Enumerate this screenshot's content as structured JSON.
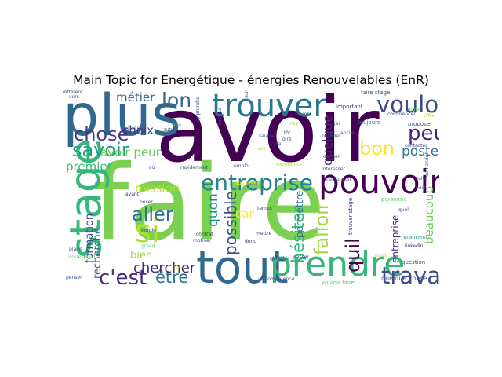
{
  "chart_data": {
    "type": "wordcloud",
    "title": "Main Topic for Energétique - énergies Renouvelables (EnR)",
    "colors": [
      "#440154",
      "#3b528b",
      "#21918c",
      "#5ec962",
      "#fde725"
    ],
    "words": [
      {
        "text": "faire",
        "weight": 1.0,
        "color": "#7ad151"
      },
      {
        "text": "avoir",
        "weight": 0.86,
        "color": "#440154"
      },
      {
        "text": "plus",
        "weight": 0.55,
        "color": "#31688e"
      },
      {
        "text": "tout",
        "weight": 0.44,
        "color": "#31688e"
      },
      {
        "text": "stage",
        "weight": 0.42,
        "color": "#35b779"
      },
      {
        "text": "trouver",
        "weight": 0.3,
        "color": "#2a788e"
      },
      {
        "text": "pouvoir",
        "weight": 0.32,
        "color": "#440154"
      },
      {
        "text": "prendre",
        "weight": 0.33,
        "color": "#35b779"
      },
      {
        "text": "si",
        "weight": 0.3,
        "color": "#b5de2b"
      },
      {
        "text": "entreprise",
        "weight": 0.21,
        "color": "#26828e"
      },
      {
        "text": "vouloir",
        "weight": 0.22,
        "color": "#3e4989"
      },
      {
        "text": "peur",
        "weight": 0.2,
        "color": "#482878"
      },
      {
        "text": "travail",
        "weight": 0.22,
        "color": "#3e4989"
      },
      {
        "text": "savoir",
        "weight": 0.18,
        "color": "#1f9e89"
      },
      {
        "text": "chose",
        "weight": 0.18,
        "color": "#443983"
      },
      {
        "text": "lon",
        "weight": 0.19,
        "color": "#31688e"
      },
      {
        "text": "bon",
        "weight": 0.18,
        "color": "#fde725"
      },
      {
        "text": "aller",
        "weight": 0.18,
        "color": "#2c728e"
      },
      {
        "text": "c'est",
        "weight": 0.2,
        "color": "#472d7b"
      },
      {
        "text": "être",
        "weight": 0.16,
        "color": "#2a788e"
      },
      {
        "text": "chercher",
        "weight": 0.14,
        "color": "#482878"
      },
      {
        "text": "falloir",
        "weight": 0.18,
        "color": "#a0da39"
      },
      {
        "text": "hésiter",
        "weight": 0.16,
        "color": "#35b779"
      },
      {
        "text": "possible",
        "weight": 0.15,
        "color": "#3b528b"
      },
      {
        "text": "quil",
        "weight": 0.18,
        "color": "#440154"
      },
      {
        "text": "quon",
        "weight": 0.13,
        "color": "#21918c"
      },
      {
        "text": "quelque",
        "weight": 0.12,
        "color": "#472d7b"
      },
      {
        "text": "poste",
        "weight": 0.13,
        "color": "#2a788e"
      },
      {
        "text": "beaucoup",
        "weight": 0.11,
        "color": "#6ece58"
      },
      {
        "text": "essayer",
        "weight": 0.12,
        "color": "#3b528b"
      },
      {
        "text": "mission",
        "weight": 0.11,
        "color": "#b5de2b"
      },
      {
        "text": "car",
        "weight": 0.11,
        "color": "#fde725"
      },
      {
        "text": "premier",
        "weight": 0.11,
        "color": "#35b779"
      },
      {
        "text": "métier",
        "weight": 0.11,
        "color": "#31688e"
      },
      {
        "text": "choix",
        "weight": 0.11,
        "color": "#443983"
      },
      {
        "text": "avoir peur",
        "weight": 0.11,
        "color": "#6ece58"
      },
      {
        "text": "formation",
        "weight": 0.1,
        "color": "#3e4989"
      },
      {
        "text": "recherche",
        "weight": 0.1,
        "color": "#31688e"
      },
      {
        "text": "bien",
        "weight": 0.1,
        "color": "#a0da39"
      },
      {
        "text": "permettre",
        "weight": 0.09,
        "color": "#2c728e"
      },
      {
        "text": "entreprise",
        "weight": 0.09,
        "color": "#482878"
      },
      {
        "text": "quelque chose",
        "weight": 0.06,
        "color": "#3b528b"
      },
      {
        "text": "vouloir faire",
        "weight": 0.05,
        "color": "#5ec962"
      },
      {
        "text": "faire stage",
        "weight": 0.05,
        "color": "#3b528b"
      },
      {
        "text": "trouver stage",
        "weight": 0.05,
        "color": "#472d7b"
      },
      {
        "text": "important",
        "weight": 0.05,
        "color": "#443983"
      },
      {
        "text": "toujours",
        "weight": 0.05,
        "color": "#2a788e"
      },
      {
        "text": "proposer",
        "weight": 0.05,
        "color": "#3b528b"
      },
      {
        "text": "contacter",
        "weight": 0.04,
        "color": "#443983"
      },
      {
        "text": "question",
        "weight": 0.05,
        "color": "#3b528b"
      },
      {
        "text": "linkedin",
        "weight": 0.04,
        "color": "#482878"
      },
      {
        "text": "vraiment",
        "weight": 0.05,
        "color": "#21918c"
      },
      {
        "text": "personne",
        "weight": 0.05,
        "color": "#5ec962"
      },
      {
        "text": "expérience",
        "weight": 0.04,
        "color": "#b5de2b"
      },
      {
        "text": "emploi",
        "weight": 0.04,
        "color": "#3b528b"
      },
      {
        "text": "temps",
        "weight": 0.04,
        "color": "#472d7b"
      },
      {
        "text": "mettre",
        "weight": 0.04,
        "color": "#443983"
      },
      {
        "text": "contrat",
        "weight": 0.04,
        "color": "#472d7b"
      },
      {
        "text": "motiver",
        "weight": 0.04,
        "color": "#3b528b"
      },
      {
        "text": "grand",
        "weight": 0.04,
        "color": "#5ec962"
      },
      {
        "text": "penser",
        "weight": 0.04,
        "color": "#3b528b"
      },
      {
        "text": "donc",
        "weight": 0.04,
        "color": "#472d7b"
      },
      {
        "text": "poser",
        "weight": 0.04,
        "color": "#3e4989"
      },
      {
        "text": "avant",
        "weight": 0.04,
        "color": "#472d7b"
      },
      {
        "text": "celer",
        "weight": 0.04,
        "color": "#3b528b"
      },
      {
        "text": "afin",
        "weight": 0.04,
        "color": "#5ec962"
      },
      {
        "text": "cela",
        "weight": 0.04,
        "color": "#3b528b"
      },
      {
        "text": "dire",
        "weight": 0.04,
        "color": "#3b528b"
      },
      {
        "text": "très",
        "weight": 0.04,
        "color": "#b5de2b"
      },
      {
        "text": "tôt",
        "weight": 0.04,
        "color": "#3b528b"
      },
      {
        "text": "postuler",
        "weight": 0.04,
        "color": "#3b528b"
      },
      {
        "text": "donner",
        "weight": 0.04,
        "color": "#3b528b"
      },
      {
        "text": "ancien",
        "weight": 0.04,
        "color": "#3b528b"
      },
      {
        "text": "jai",
        "weight": 0.04,
        "color": "#3b528b"
      },
      {
        "text": "passer",
        "weight": 0.04,
        "color": "#3b528b"
      },
      {
        "text": "partir",
        "weight": 0.04,
        "color": "#b5de2b"
      },
      {
        "text": "suite",
        "weight": 0.04,
        "color": "#3b528b"
      },
      {
        "text": "next",
        "weight": 0.04,
        "color": "#3b528b"
      },
      {
        "text": "quel",
        "weight": 0.04,
        "color": "#3b528b"
      },
      {
        "text": "aimer",
        "weight": 0.04,
        "color": "#5ec962"
      },
      {
        "text": "commencer",
        "weight": 0.04,
        "color": "#3b528b"
      },
      {
        "text": "vers",
        "weight": 0.04,
        "color": "#3b528b"
      },
      {
        "text": "apprendre",
        "weight": 0.04,
        "color": "#fde725"
      },
      {
        "text": "sy prendre",
        "weight": 0.04,
        "color": "#3b528b"
      },
      {
        "text": "plaire",
        "weight": 0.04,
        "color": "#3b528b"
      },
      {
        "text": "trop",
        "weight": 0.04,
        "color": "#fde725"
      },
      {
        "text": "monde",
        "weight": 0.04,
        "color": "#3b528b"
      },
      {
        "text": "correspondre",
        "weight": 0.04,
        "color": "#5ec962"
      },
      {
        "text": "compétence",
        "weight": 0.04,
        "color": "#3b528b"
      },
      {
        "text": "réfléchir",
        "weight": 0.04,
        "color": "#3b528b"
      },
      {
        "text": "offre",
        "weight": 0.04,
        "color": "#b5de2b"
      },
      {
        "text": "salaire",
        "weight": 0.04,
        "color": "#3b528b"
      },
      {
        "text": "voir",
        "weight": 0.04,
        "color": "#b5de2b"
      },
      {
        "text": "secteur",
        "weight": 0.04,
        "color": "#3b528b"
      },
      {
        "text": "renseigner",
        "weight": 0.04,
        "color": "#3b528b"
      },
      {
        "text": "intéresser",
        "weight": 0.04,
        "color": "#3b528b"
      },
      {
        "text": "lors",
        "weight": 0.04,
        "color": "#3b528b"
      },
      {
        "text": "autre",
        "weight": 0.04,
        "color": "#3b528b"
      },
      {
        "text": "surtout",
        "weight": 0.04,
        "color": "#3b528b"
      },
      {
        "text": "où",
        "weight": 0.04,
        "color": "#3b528b"
      },
      {
        "text": "rapidement",
        "weight": 0.04,
        "color": "#3b528b"
      },
      {
        "text": "demander",
        "weight": 0.04,
        "color": "#3b528b"
      },
      {
        "text": "différent",
        "weight": 0.04,
        "color": "#3b528b"
      }
    ]
  }
}
